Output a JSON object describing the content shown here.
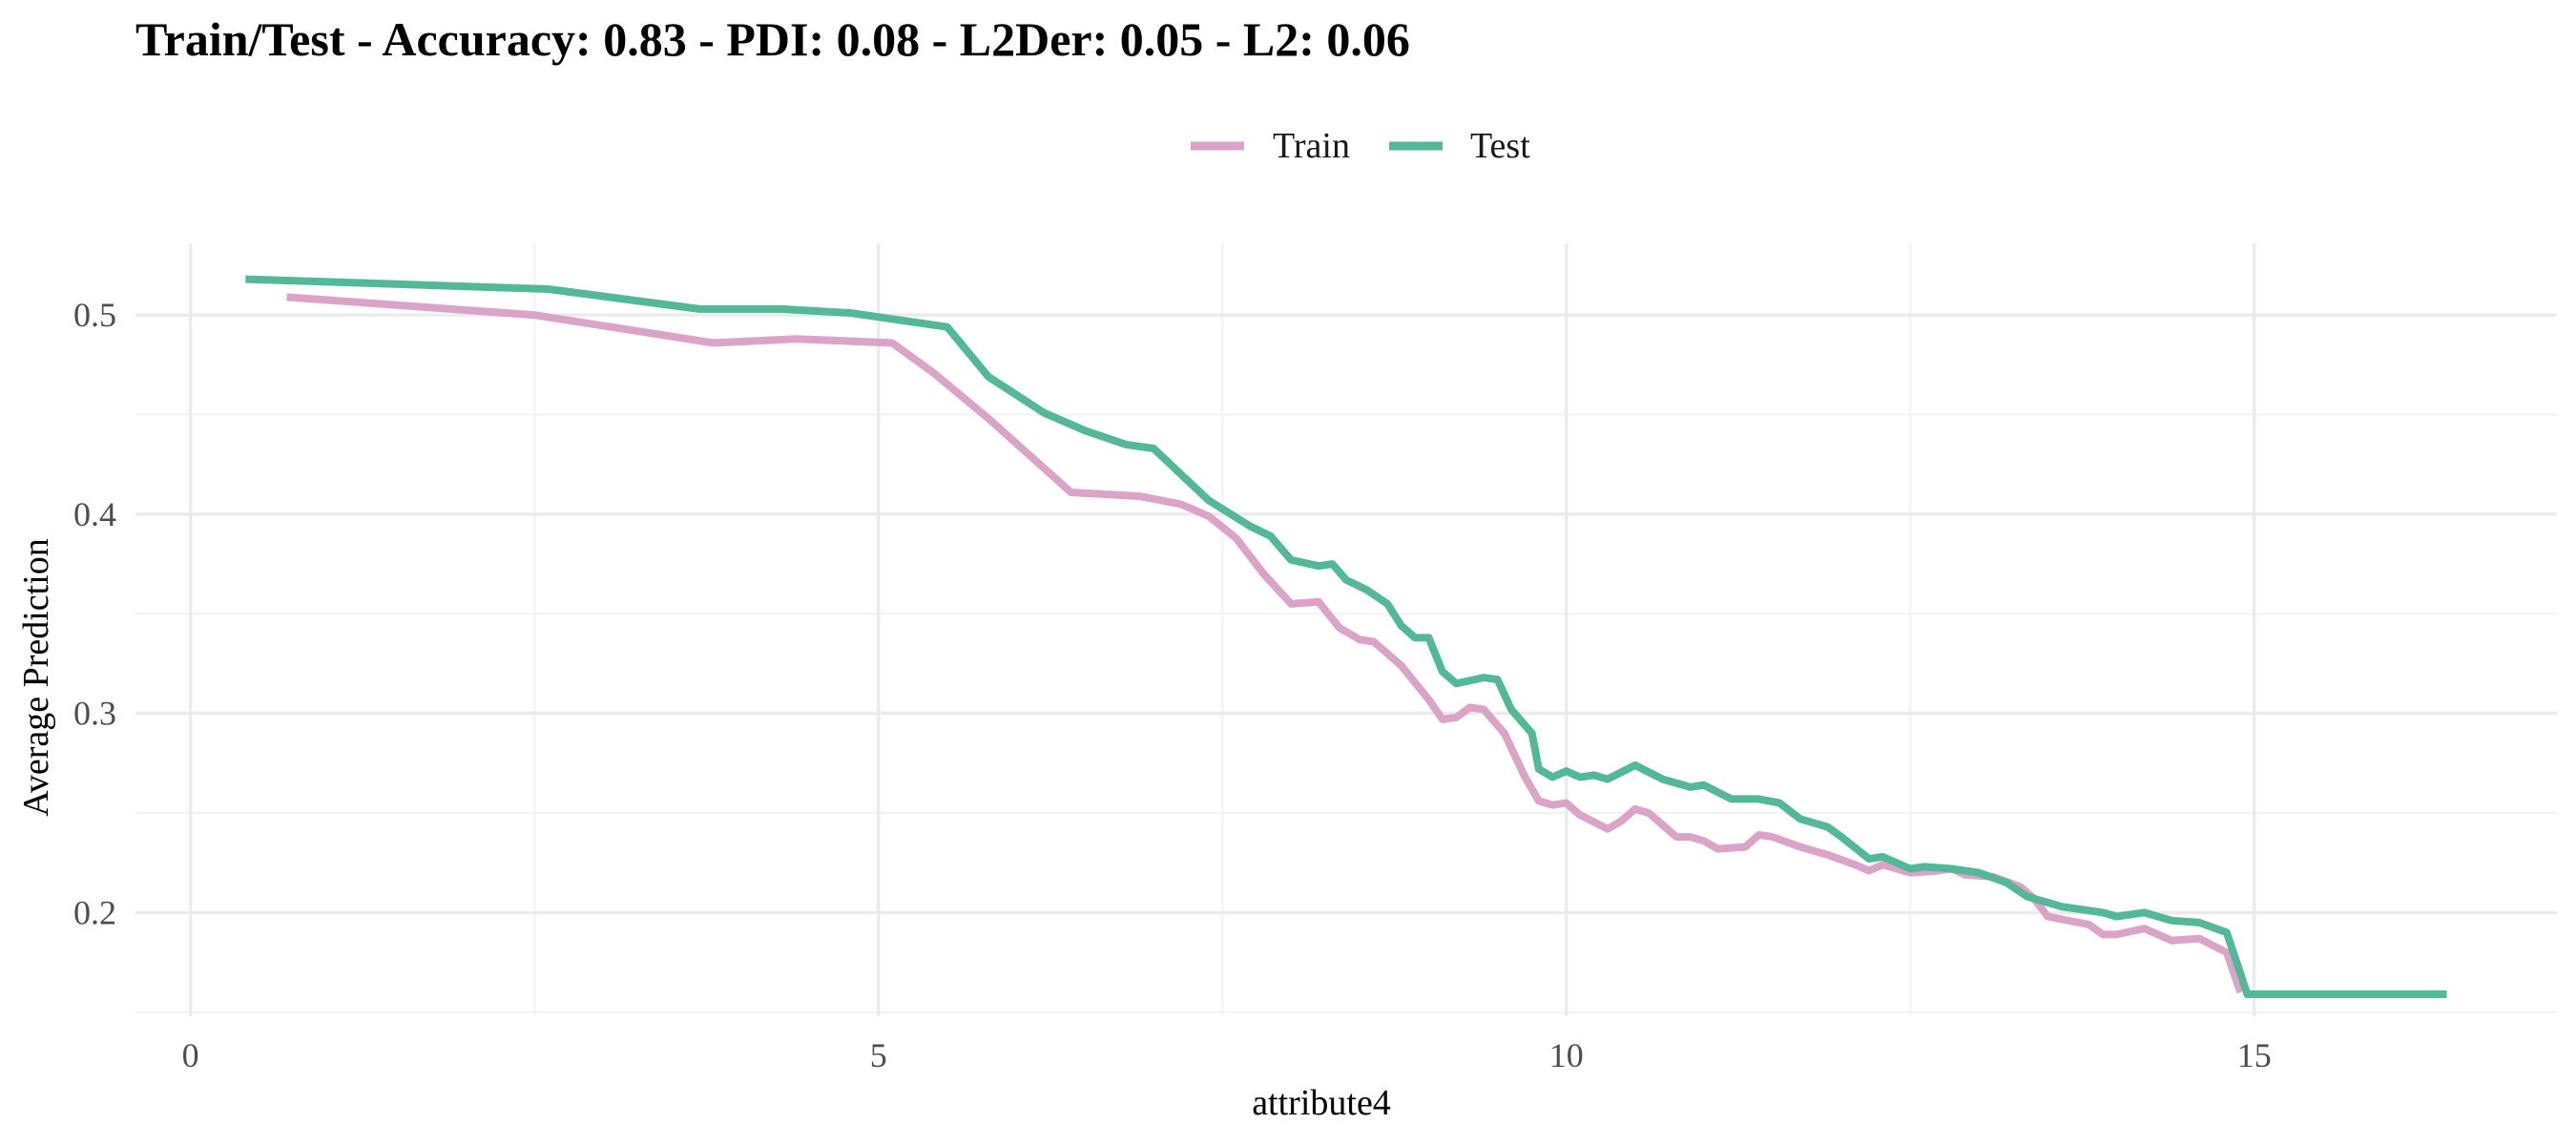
{
  "chart_data": {
    "type": "line",
    "title": "Train/Test - Accuracy: 0.83 - PDI: 0.08 - L2Der: 0.05 - L2: 0.06",
    "xlabel": "attribute4",
    "ylabel": "Average Prediction",
    "xlim": [
      -0.4,
      17.2
    ],
    "ylim": [
      0.148,
      0.536
    ],
    "x_ticks": [
      0,
      5,
      10,
      15
    ],
    "x_tick_labels": [
      "0",
      "5",
      "10",
      "15"
    ],
    "y_ticks": [
      0.2,
      0.3,
      0.4,
      0.5
    ],
    "y_tick_labels": [
      "0.2",
      "0.3",
      "0.4",
      "0.5"
    ],
    "grid": true,
    "legend_position": "top",
    "series": [
      {
        "name": "Train",
        "color": "#dba3c8",
        "points": [
          [
            0.7,
            0.509
          ],
          [
            2.5,
            0.5
          ],
          [
            3.8,
            0.486
          ],
          [
            4.4,
            0.488
          ],
          [
            5.1,
            0.486
          ],
          [
            5.4,
            0.471
          ],
          [
            5.8,
            0.448
          ],
          [
            6.4,
            0.411
          ],
          [
            6.9,
            0.409
          ],
          [
            7.2,
            0.405
          ],
          [
            7.4,
            0.399
          ],
          [
            7.6,
            0.388
          ],
          [
            7.8,
            0.37
          ],
          [
            8.0,
            0.355
          ],
          [
            8.2,
            0.356
          ],
          [
            8.35,
            0.343
          ],
          [
            8.5,
            0.337
          ],
          [
            8.6,
            0.336
          ],
          [
            8.8,
            0.324
          ],
          [
            9.0,
            0.307
          ],
          [
            9.1,
            0.297
          ],
          [
            9.2,
            0.298
          ],
          [
            9.3,
            0.303
          ],
          [
            9.4,
            0.302
          ],
          [
            9.55,
            0.29
          ],
          [
            9.7,
            0.268
          ],
          [
            9.8,
            0.256
          ],
          [
            9.9,
            0.254
          ],
          [
            10.0,
            0.255
          ],
          [
            10.1,
            0.249
          ],
          [
            10.3,
            0.242
          ],
          [
            10.4,
            0.246
          ],
          [
            10.5,
            0.252
          ],
          [
            10.6,
            0.25
          ],
          [
            10.8,
            0.238
          ],
          [
            10.9,
            0.238
          ],
          [
            11.0,
            0.236
          ],
          [
            11.1,
            0.232
          ],
          [
            11.3,
            0.233
          ],
          [
            11.4,
            0.239
          ],
          [
            11.5,
            0.238
          ],
          [
            11.7,
            0.233
          ],
          [
            11.9,
            0.229
          ],
          [
            12.1,
            0.224
          ],
          [
            12.2,
            0.221
          ],
          [
            12.3,
            0.224
          ],
          [
            12.5,
            0.22
          ],
          [
            12.7,
            0.221
          ],
          [
            12.8,
            0.222
          ],
          [
            12.9,
            0.219
          ],
          [
            13.1,
            0.218
          ],
          [
            13.3,
            0.213
          ],
          [
            13.4,
            0.207
          ],
          [
            13.5,
            0.198
          ],
          [
            13.8,
            0.194
          ],
          [
            13.9,
            0.189
          ],
          [
            14.0,
            0.189
          ],
          [
            14.2,
            0.192
          ],
          [
            14.4,
            0.186
          ],
          [
            14.6,
            0.187
          ],
          [
            14.8,
            0.18
          ],
          [
            14.9,
            0.16
          ]
        ]
      },
      {
        "name": "Test",
        "color": "#52b898",
        "points": [
          [
            0.4,
            0.518
          ],
          [
            2.6,
            0.513
          ],
          [
            3.7,
            0.503
          ],
          [
            4.3,
            0.503
          ],
          [
            4.8,
            0.501
          ],
          [
            5.5,
            0.494
          ],
          [
            5.8,
            0.469
          ],
          [
            6.2,
            0.451
          ],
          [
            6.5,
            0.442
          ],
          [
            6.8,
            0.435
          ],
          [
            7.0,
            0.433
          ],
          [
            7.4,
            0.407
          ],
          [
            7.7,
            0.394
          ],
          [
            7.85,
            0.389
          ],
          [
            8.0,
            0.377
          ],
          [
            8.2,
            0.374
          ],
          [
            8.3,
            0.375
          ],
          [
            8.4,
            0.367
          ],
          [
            8.55,
            0.362
          ],
          [
            8.7,
            0.355
          ],
          [
            8.8,
            0.344
          ],
          [
            8.9,
            0.338
          ],
          [
            9.0,
            0.338
          ],
          [
            9.1,
            0.321
          ],
          [
            9.2,
            0.315
          ],
          [
            9.4,
            0.318
          ],
          [
            9.5,
            0.317
          ],
          [
            9.6,
            0.302
          ],
          [
            9.75,
            0.29
          ],
          [
            9.8,
            0.272
          ],
          [
            9.9,
            0.268
          ],
          [
            10.0,
            0.271
          ],
          [
            10.1,
            0.268
          ],
          [
            10.2,
            0.269
          ],
          [
            10.3,
            0.267
          ],
          [
            10.5,
            0.274
          ],
          [
            10.7,
            0.267
          ],
          [
            10.9,
            0.263
          ],
          [
            11.0,
            0.264
          ],
          [
            11.2,
            0.257
          ],
          [
            11.4,
            0.257
          ],
          [
            11.55,
            0.255
          ],
          [
            11.7,
            0.247
          ],
          [
            11.9,
            0.243
          ],
          [
            12.0,
            0.238
          ],
          [
            12.2,
            0.227
          ],
          [
            12.3,
            0.228
          ],
          [
            12.5,
            0.222
          ],
          [
            12.6,
            0.223
          ],
          [
            12.8,
            0.222
          ],
          [
            13.0,
            0.22
          ],
          [
            13.2,
            0.215
          ],
          [
            13.35,
            0.208
          ],
          [
            13.6,
            0.203
          ],
          [
            13.9,
            0.2
          ],
          [
            14.0,
            0.198
          ],
          [
            14.2,
            0.2
          ],
          [
            14.4,
            0.196
          ],
          [
            14.6,
            0.195
          ],
          [
            14.8,
            0.19
          ],
          [
            14.95,
            0.159
          ],
          [
            16.4,
            0.159
          ]
        ]
      }
    ]
  }
}
